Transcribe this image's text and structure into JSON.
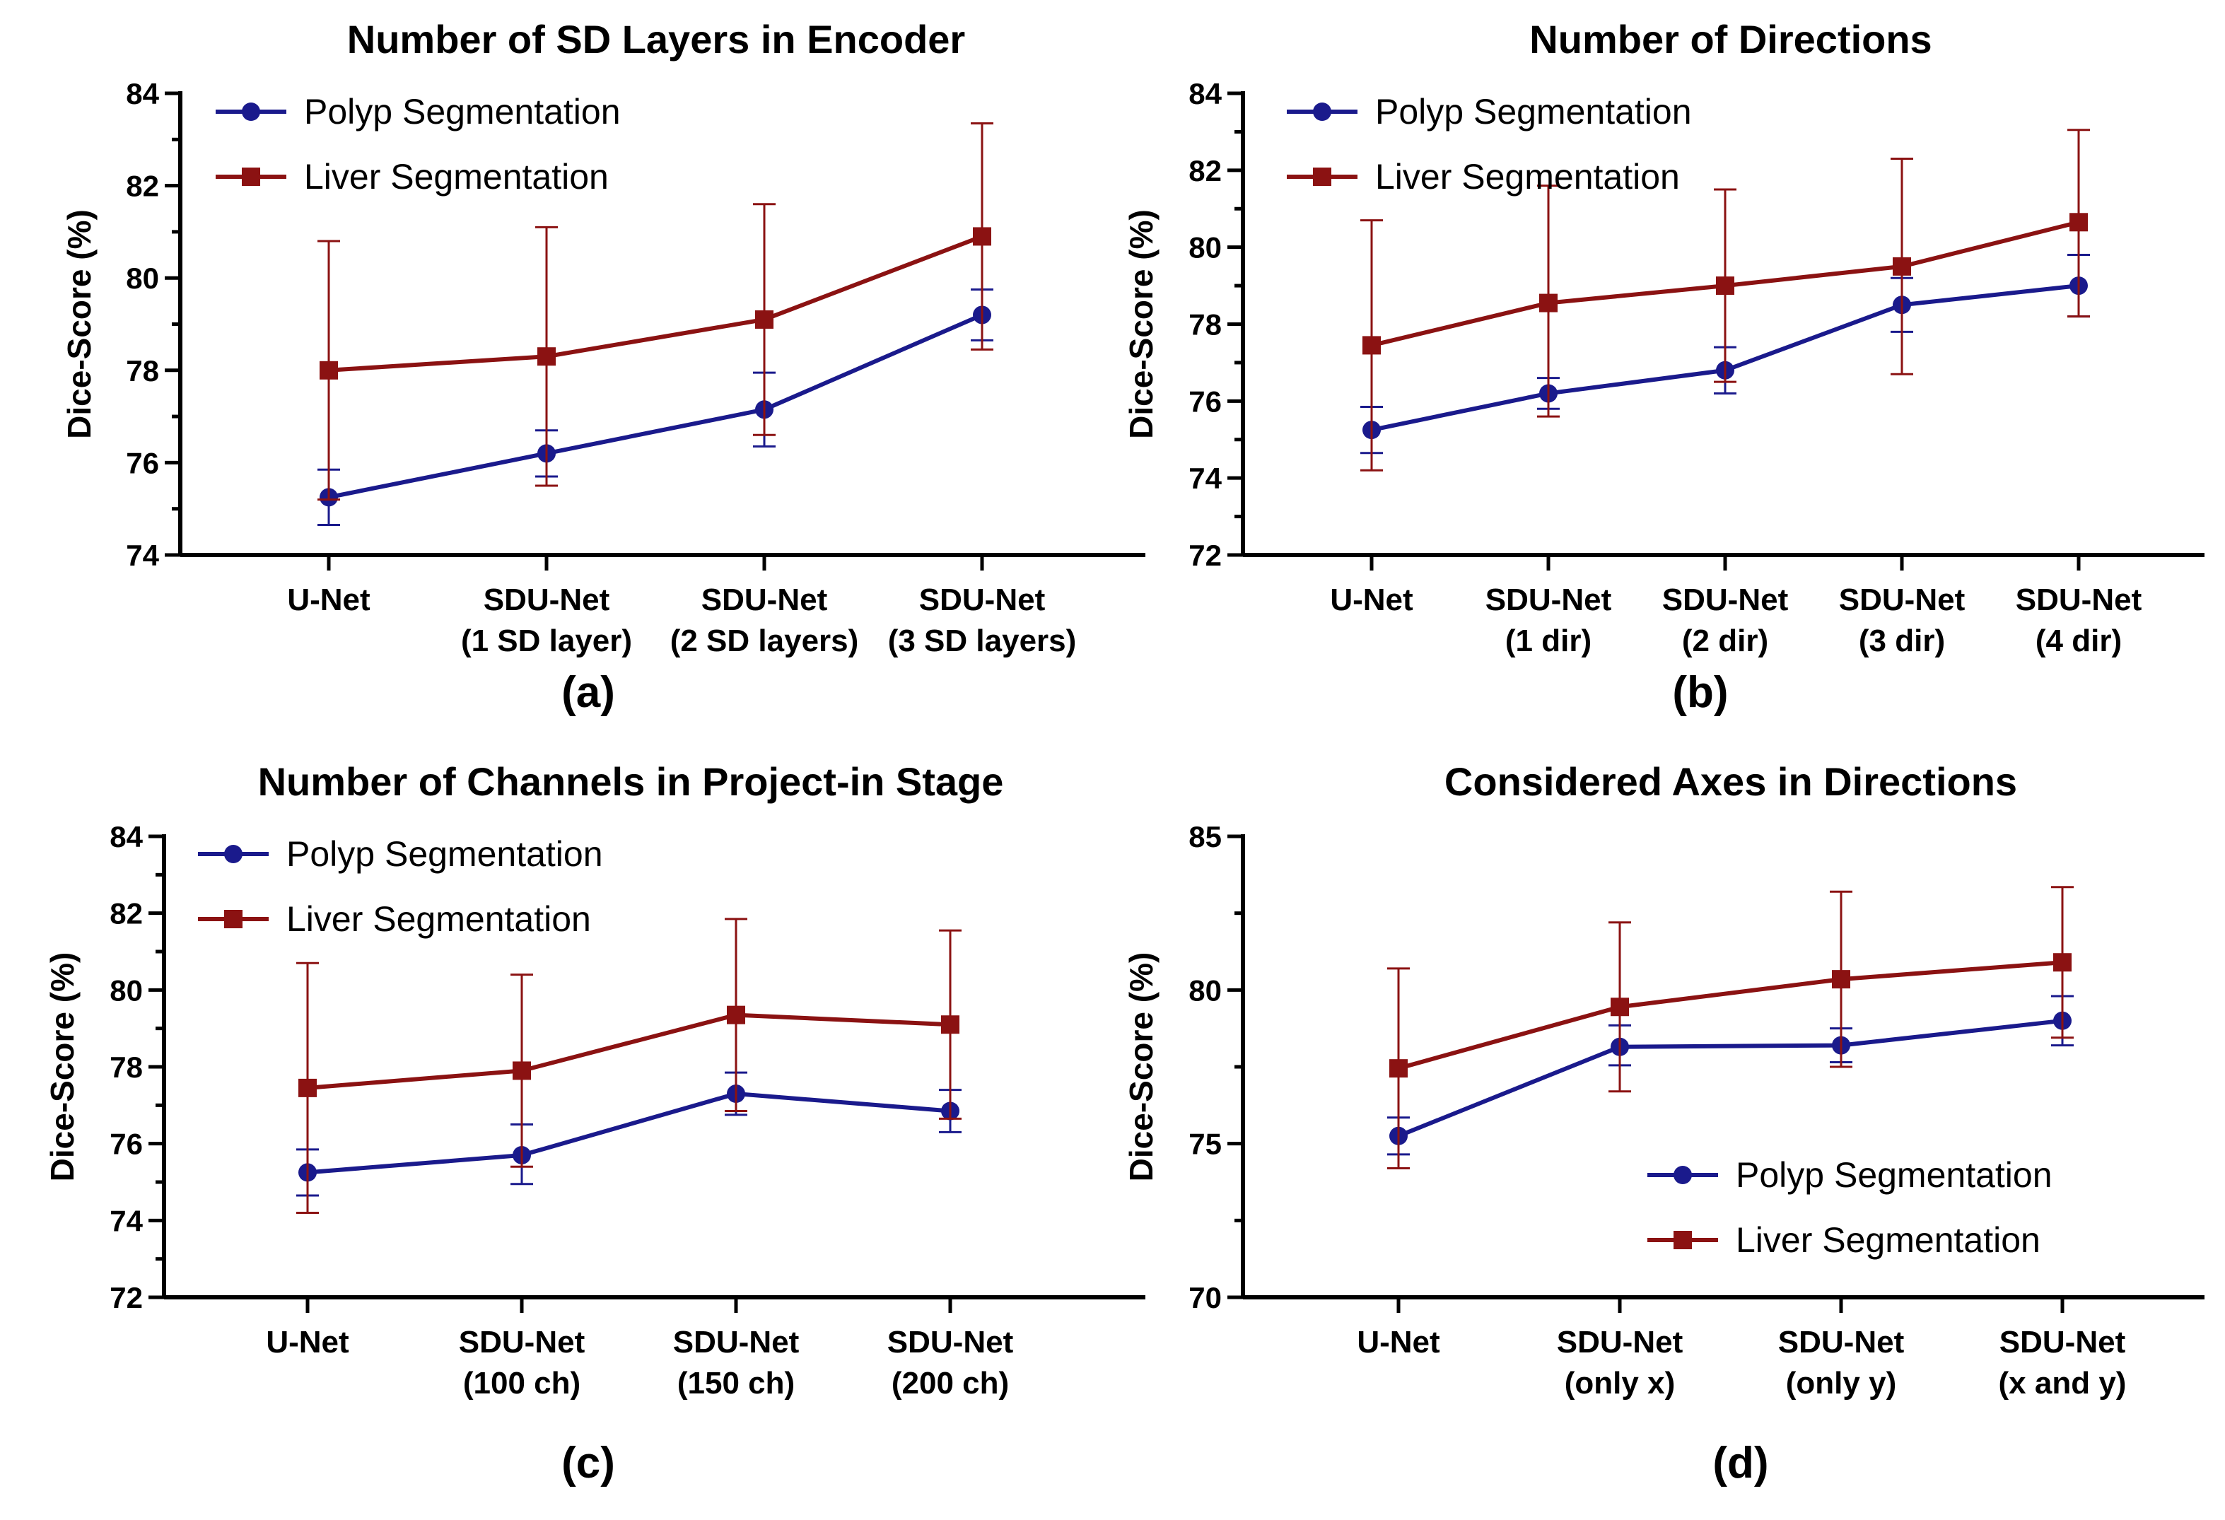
{
  "figure": {
    "colors": {
      "polyp": "#1a1a8c",
      "liver": "#8b1212"
    }
  },
  "chart_data": [
    {
      "type": "line",
      "panel_label": "(a)",
      "title": "Number of SD Layers in Encoder",
      "xlabel": "",
      "ylabel": "Dice-Score (%)",
      "ylim": [
        74,
        84
      ],
      "yticks": [
        "74",
        "76",
        "78",
        "80",
        "82",
        "84"
      ],
      "categories": [
        [
          "U-Net"
        ],
        [
          "SDU-Net",
          "(1 SD layer)"
        ],
        [
          "SDU-Net",
          "(2 SD layers)"
        ],
        [
          "SDU-Net",
          "(3 SD layers)"
        ]
      ],
      "legend_position": "top-left",
      "series": [
        {
          "name": "Polyp Segmentation",
          "marker": "circle",
          "color": "#1a1a8c",
          "values": [
            75.25,
            76.2,
            77.15,
            79.2
          ],
          "err_high": [
            75.85,
            76.7,
            77.95,
            79.75
          ],
          "err_low": [
            74.65,
            75.7,
            76.35,
            78.65
          ]
        },
        {
          "name": "Liver Segmentation",
          "marker": "square",
          "color": "#8b1212",
          "values": [
            78.0,
            78.3,
            79.1,
            80.9
          ],
          "err_high": [
            80.8,
            81.1,
            81.6,
            83.35
          ],
          "err_low": [
            75.2,
            75.5,
            76.6,
            78.45
          ]
        }
      ]
    },
    {
      "type": "line",
      "panel_label": "(b)",
      "title": "Number of Directions",
      "xlabel": "",
      "ylabel": "Dice-Score (%)",
      "ylim": [
        72,
        84
      ],
      "yticks": [
        "72",
        "74",
        "76",
        "78",
        "80",
        "82",
        "84"
      ],
      "categories": [
        [
          "U-Net"
        ],
        [
          "SDU-Net",
          "(1 dir)"
        ],
        [
          "SDU-Net",
          "(2 dir)"
        ],
        [
          "SDU-Net",
          "(3 dir)"
        ],
        [
          "SDU-Net",
          "(4 dir)"
        ]
      ],
      "legend_position": "top-left",
      "series": [
        {
          "name": "Polyp Segmentation",
          "marker": "circle",
          "color": "#1a1a8c",
          "values": [
            75.25,
            76.2,
            76.8,
            78.5,
            79.0
          ],
          "err_high": [
            75.85,
            76.6,
            77.4,
            79.2,
            79.8
          ],
          "err_low": [
            74.65,
            75.8,
            76.2,
            77.8,
            78.2
          ]
        },
        {
          "name": "Liver Segmentation",
          "marker": "square",
          "color": "#8b1212",
          "values": [
            77.45,
            78.55,
            79.0,
            79.5,
            80.65
          ],
          "err_high": [
            80.7,
            81.6,
            81.5,
            82.3,
            83.05
          ],
          "err_low": [
            74.2,
            75.6,
            76.5,
            76.7,
            78.2
          ]
        }
      ]
    },
    {
      "type": "line",
      "panel_label": "(c)",
      "title": "Number of Channels in Project-in Stage",
      "xlabel": "",
      "ylabel": "Dice-Score (%)",
      "ylim": [
        72,
        84
      ],
      "yticks": [
        "72",
        "74",
        "76",
        "78",
        "80",
        "82",
        "84"
      ],
      "categories": [
        [
          "U-Net"
        ],
        [
          "SDU-Net",
          "(100 ch)"
        ],
        [
          "SDU-Net",
          "(150 ch)"
        ],
        [
          "SDU-Net",
          "(200 ch)"
        ]
      ],
      "legend_position": "top-left",
      "series": [
        {
          "name": "Polyp Segmentation",
          "marker": "circle",
          "color": "#1a1a8c",
          "values": [
            75.25,
            75.7,
            77.3,
            76.85
          ],
          "err_high": [
            75.85,
            76.5,
            77.85,
            77.4
          ],
          "err_low": [
            74.65,
            74.95,
            76.75,
            76.3
          ]
        },
        {
          "name": "Liver Segmentation",
          "marker": "square",
          "color": "#8b1212",
          "values": [
            77.45,
            77.9,
            79.35,
            79.1
          ],
          "err_high": [
            80.7,
            80.4,
            81.85,
            81.55
          ],
          "err_low": [
            74.2,
            75.4,
            76.85,
            76.65
          ]
        }
      ]
    },
    {
      "type": "line",
      "panel_label": "(d)",
      "title": "Considered Axes in Directions",
      "xlabel": "",
      "ylabel": "Dice-Score (%)",
      "ylim": [
        70,
        85
      ],
      "yticks": [
        "70",
        "75",
        "80",
        "85"
      ],
      "categories": [
        [
          "U-Net"
        ],
        [
          "SDU-Net",
          "(only x)"
        ],
        [
          "SDU-Net",
          "(only y)"
        ],
        [
          "SDU-Net",
          "(x and y)"
        ]
      ],
      "legend_position": "bottom-right",
      "series": [
        {
          "name": "Polyp Segmentation",
          "marker": "circle",
          "color": "#1a1a8c",
          "values": [
            75.25,
            78.15,
            78.2,
            79.0
          ],
          "err_high": [
            75.85,
            78.85,
            78.75,
            79.8
          ],
          "err_low": [
            74.65,
            77.55,
            77.65,
            78.2
          ]
        },
        {
          "name": "Liver Segmentation",
          "marker": "square",
          "color": "#8b1212",
          "values": [
            77.45,
            79.45,
            80.35,
            80.9
          ],
          "err_high": [
            80.7,
            82.2,
            83.2,
            83.35
          ],
          "err_low": [
            74.2,
            76.7,
            77.5,
            78.45
          ]
        }
      ]
    }
  ]
}
